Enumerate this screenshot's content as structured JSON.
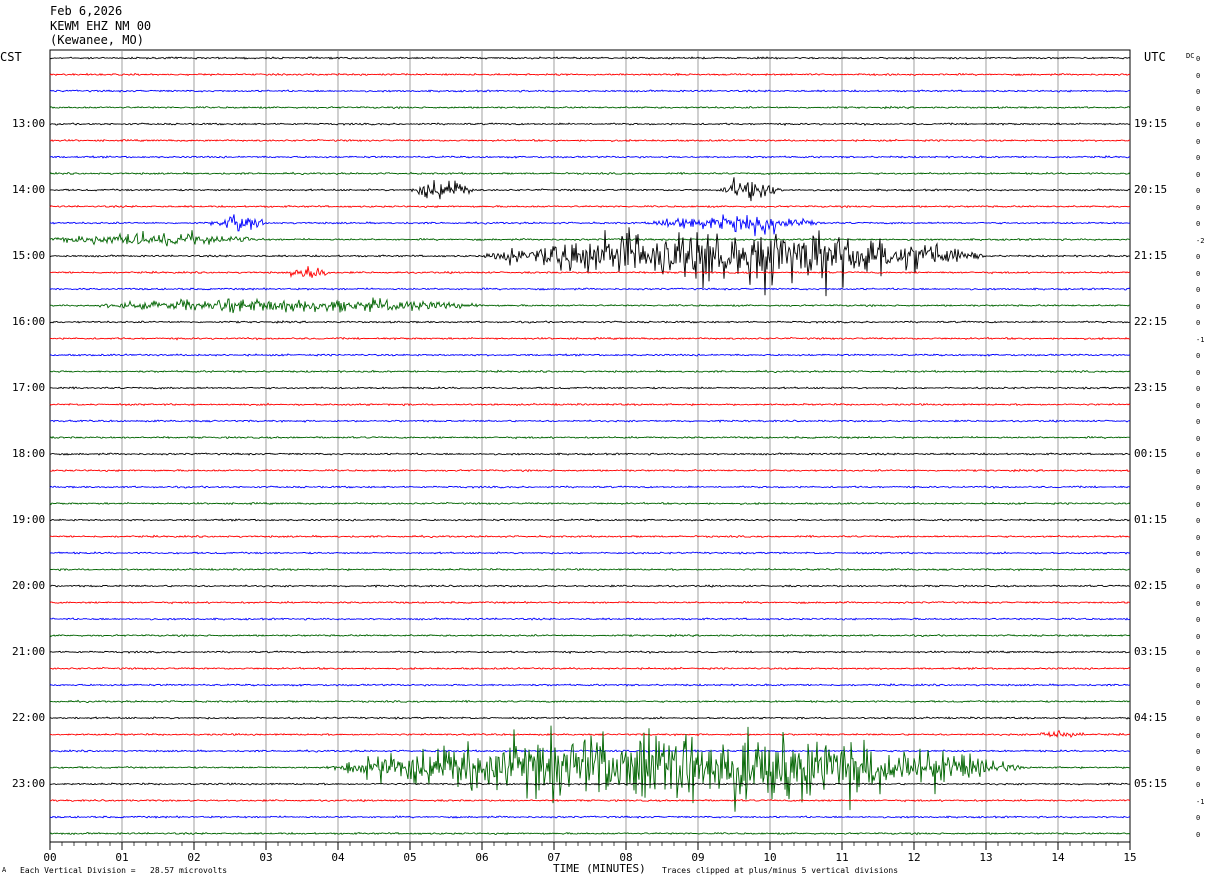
{
  "header": {
    "date": "Feb 6,2026",
    "station": "KEWM EHZ NM 00",
    "location": "(Kewanee, MO)"
  },
  "labels": {
    "left_zone": "CST",
    "right_zone": "UTC",
    "dc_label": "DC",
    "footer_left": "Each Vertical Division =   28.57 microvolts",
    "footer_right": "Traces clipped at plus/minus 5 vertical divisions",
    "corner_mark": "A"
  },
  "chart_data": {
    "type": "line",
    "xlabel": "TIME (MINUTES)",
    "x_ticks": [
      "00",
      "01",
      "02",
      "03",
      "04",
      "05",
      "06",
      "07",
      "08",
      "09",
      "10",
      "11",
      "12",
      "13",
      "14",
      "15"
    ],
    "xlim": [
      0,
      15
    ],
    "trace_count": 48,
    "trace_interval_minutes": 15,
    "trace_colors": [
      "#000000",
      "#ff0000",
      "#0000ff",
      "#006400"
    ],
    "grid": true,
    "left_hour_labels": [
      "13:00",
      "14:00",
      "15:00",
      "16:00",
      "17:00",
      "18:00",
      "19:00",
      "20:00",
      "21:00",
      "22:00",
      "23:00"
    ],
    "right_hour_labels": [
      "19:15",
      "20:15",
      "21:15",
      "22:15",
      "23:15",
      "00:15",
      "01:15",
      "02:15",
      "03:15",
      "04:15",
      "05:15"
    ],
    "dc_offsets": [
      "0",
      "0",
      "0",
      "0",
      "0",
      "0",
      "0",
      "0",
      "0",
      "0",
      "0",
      "-2",
      "0",
      "0",
      "0",
      "0",
      "0",
      "-1",
      "0",
      "0",
      "0",
      "0",
      "0",
      "0",
      "0",
      "0",
      "0",
      "0",
      "0",
      "0",
      "0",
      "0",
      "0",
      "0",
      "0",
      "0",
      "0",
      "0",
      "0",
      "0",
      "0",
      "0",
      "0",
      "0",
      "0",
      "-1",
      "0",
      "0"
    ],
    "events": [
      {
        "trace": 8,
        "start_min": 5.0,
        "end_min": 5.9,
        "amplitude": 1.4
      },
      {
        "trace": 8,
        "start_min": 9.3,
        "end_min": 10.2,
        "amplitude": 1.6
      },
      {
        "trace": 10,
        "start_min": 2.2,
        "end_min": 3.0,
        "amplitude": 0.9
      },
      {
        "trace": 10,
        "start_min": 8.3,
        "end_min": 10.8,
        "amplitude": 1.2
      },
      {
        "trace": 11,
        "start_min": 0.0,
        "end_min": 3.0,
        "amplitude": 0.8
      },
      {
        "trace": 12,
        "start_min": 6.0,
        "end_min": 13.0,
        "amplitude": 4.0
      },
      {
        "trace": 13,
        "start_min": 3.3,
        "end_min": 3.9,
        "amplitude": 0.9
      },
      {
        "trace": 15,
        "start_min": 0.6,
        "end_min": 6.1,
        "amplitude": 0.9
      },
      {
        "trace": 41,
        "start_min": 13.7,
        "end_min": 14.4,
        "amplitude": 0.5
      },
      {
        "trace": 43,
        "start_min": 3.8,
        "end_min": 13.5,
        "amplitude": 5.0
      }
    ]
  }
}
